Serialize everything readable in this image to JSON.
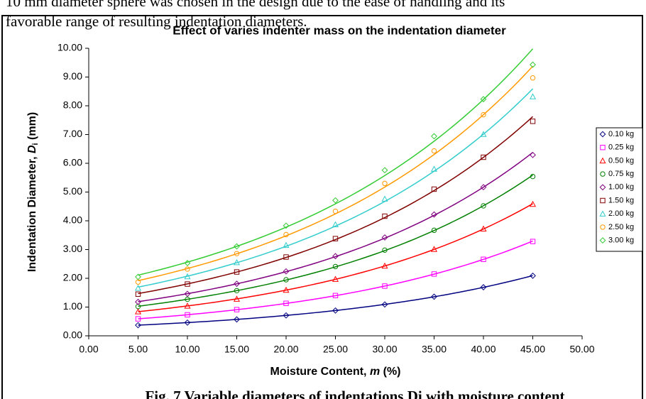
{
  "document": {
    "lines": [
      "10 mm diameter sphere was chosen in the design due to the ease of handling and its",
      "favorable range of resulting indentation diameters."
    ],
    "caption": "Fig. 7 Variable diameters of indentations Di with moisture content"
  },
  "chart_data": {
    "type": "scatter",
    "trendline": "exponential",
    "title": "Effect of varies indenter mass on the indentation diameter",
    "xlabel": [
      "Moisture Content, ",
      "m",
      " (%)"
    ],
    "ylabel": [
      "Indentation Diameter, ",
      "D",
      "i",
      " (mm)"
    ],
    "x": [
      5,
      10,
      15,
      20,
      25,
      30,
      35,
      40,
      45
    ],
    "xlim": [
      0,
      50
    ],
    "ylim": [
      0,
      10
    ],
    "xticks": [
      {
        "value": 0,
        "label": "0.00"
      },
      {
        "value": 5,
        "label": "5.00"
      },
      {
        "value": 10,
        "label": "10.00"
      },
      {
        "value": 15,
        "label": "15.00"
      },
      {
        "value": 20,
        "label": "20.00"
      },
      {
        "value": 25,
        "label": "25.00"
      },
      {
        "value": 30,
        "label": "30.00"
      },
      {
        "value": 35,
        "label": "35.00"
      },
      {
        "value": 40,
        "label": "40.00"
      },
      {
        "value": 45,
        "label": "45.00"
      },
      {
        "value": 50,
        "label": "50.00"
      }
    ],
    "yticks": [
      {
        "value": 0,
        "label": "0.00"
      },
      {
        "value": 1,
        "label": "1.00"
      },
      {
        "value": 2,
        "label": "2.00"
      },
      {
        "value": 3,
        "label": "3.00"
      },
      {
        "value": 4,
        "label": "4.00"
      },
      {
        "value": 5,
        "label": "5.00"
      },
      {
        "value": 6,
        "label": "6.00"
      },
      {
        "value": 7,
        "label": "7.00"
      },
      {
        "value": 8,
        "label": "8.00"
      },
      {
        "value": 9,
        "label": "9.00"
      },
      {
        "value": 10,
        "label": "10.00"
      }
    ],
    "grid": false,
    "legend": "right",
    "series": [
      {
        "name": "0.10 kg",
        "color": "#000080",
        "marker": "diamond",
        "values": [
          0.37,
          0.46,
          0.57,
          0.71,
          0.88,
          1.09,
          1.36,
          1.69,
          2.09
        ]
      },
      {
        "name": "0.25 kg",
        "color": "#ff00ff",
        "marker": "square",
        "values": [
          0.59,
          0.73,
          0.91,
          1.13,
          1.4,
          1.73,
          2.15,
          2.66,
          3.28
        ]
      },
      {
        "name": "0.50 kg",
        "color": "#ff0000",
        "marker": "triangle",
        "values": [
          0.84,
          1.04,
          1.28,
          1.59,
          1.97,
          2.43,
          3.01,
          3.72,
          4.58
        ]
      },
      {
        "name": "0.75 kg",
        "color": "#008000",
        "marker": "circle",
        "values": [
          1.02,
          1.27,
          1.57,
          1.95,
          2.41,
          2.98,
          3.67,
          4.52,
          5.54
        ]
      },
      {
        "name": "1.00 kg",
        "color": "#800080",
        "marker": "diamond",
        "values": [
          1.18,
          1.46,
          1.81,
          2.24,
          2.77,
          3.42,
          4.22,
          5.17,
          6.29
        ]
      },
      {
        "name": "1.50 kg",
        "color": "#800000",
        "marker": "square",
        "values": [
          1.45,
          1.8,
          2.22,
          2.74,
          3.38,
          4.16,
          5.1,
          6.21,
          7.46
        ]
      },
      {
        "name": "2.00 kg",
        "color": "#33cccc",
        "marker": "triangle",
        "values": [
          1.66,
          2.06,
          2.55,
          3.15,
          3.87,
          4.76,
          5.8,
          7.01,
          8.32
        ]
      },
      {
        "name": "2.50 kg",
        "color": "#ff9900",
        "marker": "circle",
        "values": [
          1.87,
          2.32,
          2.86,
          3.52,
          4.33,
          5.3,
          6.43,
          7.69,
          8.97
        ]
      },
      {
        "name": "3.00 kg",
        "color": "#33cc33",
        "marker": "diamond",
        "values": [
          2.05,
          2.53,
          3.11,
          3.83,
          4.71,
          5.76,
          6.94,
          8.23,
          9.43
        ]
      }
    ]
  }
}
